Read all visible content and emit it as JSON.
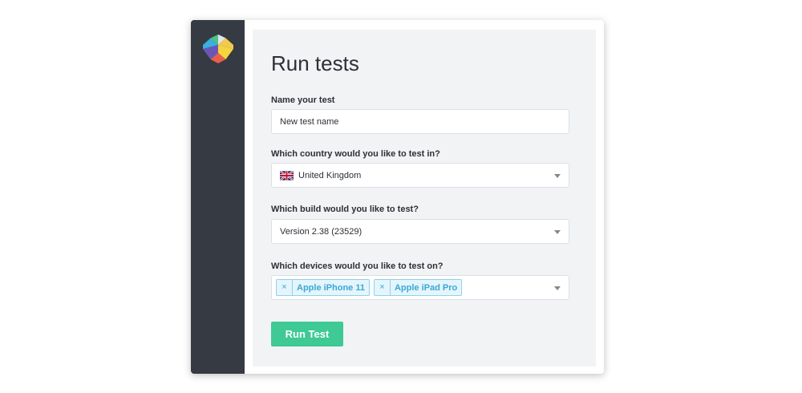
{
  "page": {
    "title": "Run tests"
  },
  "form": {
    "name": {
      "label": "Name your test",
      "value": "New test name"
    },
    "country": {
      "label": "Which country would you like to test in?",
      "value": "United Kingdom",
      "flag": "uk-flag"
    },
    "build": {
      "label": "Which build would you like to test?",
      "value": "Version 2.38 (23529)"
    },
    "devices": {
      "label": "Which devices would you like to test on?",
      "selected": [
        "Apple iPhone 11",
        "Apple iPad Pro"
      ],
      "remove_symbol": "×"
    },
    "submit_label": "Run Test"
  },
  "colors": {
    "sidebar": "#363a43",
    "accent": "#3ec995",
    "tag": "#3ba8d6"
  }
}
